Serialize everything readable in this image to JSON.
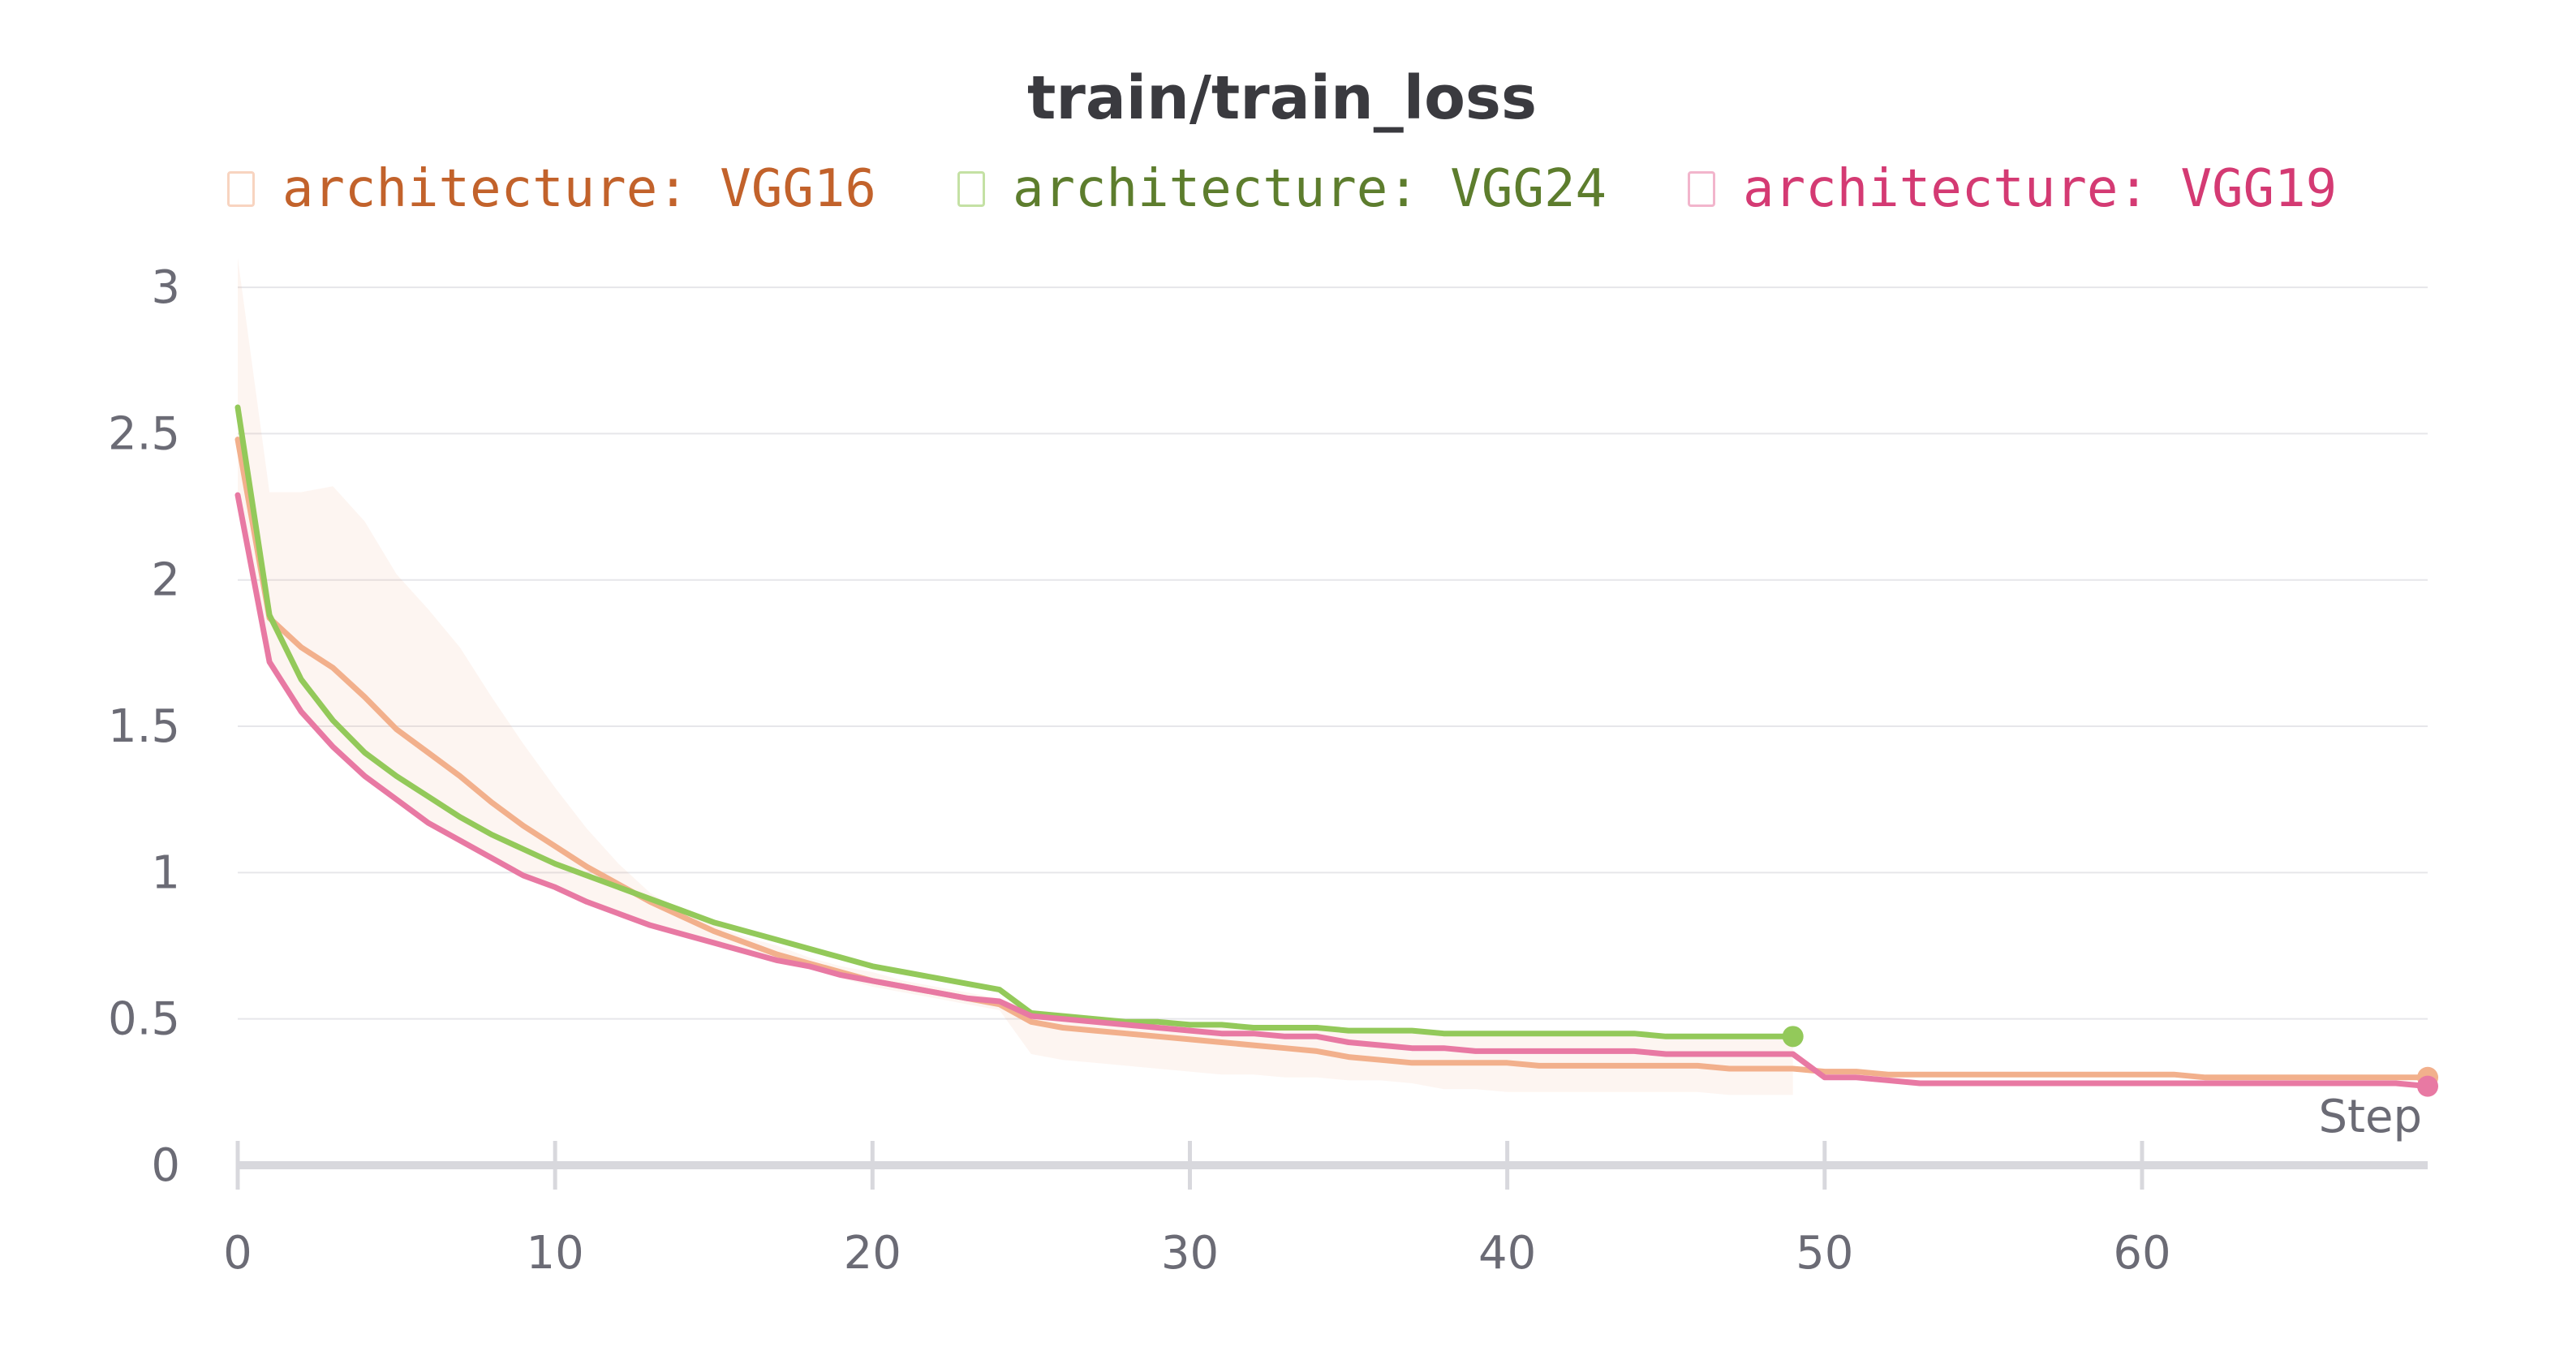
{
  "chart_data": {
    "type": "line",
    "title": "train/train_loss",
    "xlabel": "Step",
    "ylabel": "",
    "xlim": [
      0,
      69
    ],
    "ylim": [
      0,
      3.15
    ],
    "x_ticks": [
      "0",
      "10",
      "20",
      "30",
      "40",
      "50",
      "60"
    ],
    "y_ticks": [
      "0",
      "0.5",
      "1",
      "1.5",
      "2",
      "2.5",
      "3"
    ],
    "grid": true,
    "legend_position": "top-center",
    "series": [
      {
        "name": "architecture: VGG16",
        "color": "#f2b08c",
        "legend_color": "#c2622b",
        "x": [
          0,
          1,
          2,
          3,
          4,
          5,
          6,
          7,
          8,
          9,
          10,
          11,
          12,
          13,
          14,
          15,
          16,
          17,
          18,
          19,
          20,
          21,
          22,
          23,
          24,
          25,
          26,
          27,
          28,
          29,
          30,
          31,
          32,
          33,
          34,
          35,
          36,
          37,
          38,
          39,
          40,
          41,
          42,
          43,
          44,
          45,
          46,
          47,
          48,
          49,
          50,
          51,
          52,
          53,
          54,
          55,
          56,
          57,
          58,
          59,
          60,
          61,
          62,
          63,
          64,
          65,
          66,
          67,
          68,
          69
        ],
        "y": [
          2.48,
          1.87,
          1.77,
          1.7,
          1.6,
          1.49,
          1.41,
          1.33,
          1.24,
          1.16,
          1.09,
          1.02,
          0.96,
          0.9,
          0.85,
          0.8,
          0.76,
          0.72,
          0.69,
          0.66,
          0.63,
          0.61,
          0.59,
          0.57,
          0.55,
          0.49,
          0.47,
          0.46,
          0.45,
          0.44,
          0.43,
          0.42,
          0.41,
          0.4,
          0.39,
          0.37,
          0.36,
          0.35,
          0.35,
          0.35,
          0.35,
          0.34,
          0.34,
          0.34,
          0.34,
          0.34,
          0.34,
          0.33,
          0.33,
          0.33,
          0.32,
          0.32,
          0.31,
          0.31,
          0.31,
          0.31,
          0.31,
          0.31,
          0.31,
          0.31,
          0.31,
          0.31,
          0.3,
          0.3,
          0.3,
          0.3,
          0.3,
          0.3,
          0.3,
          0.3
        ]
      },
      {
        "name": "architecture: VGG24",
        "color": "#93c95a",
        "legend_color": "#5d7d2d",
        "x": [
          0,
          1,
          2,
          3,
          4,
          5,
          6,
          7,
          8,
          9,
          10,
          11,
          12,
          13,
          14,
          15,
          16,
          17,
          18,
          19,
          20,
          21,
          22,
          23,
          24,
          25,
          26,
          27,
          28,
          29,
          30,
          31,
          32,
          33,
          34,
          35,
          36,
          37,
          38,
          39,
          40,
          41,
          42,
          43,
          44,
          45,
          46,
          47,
          48,
          49
        ],
        "y": [
          2.59,
          1.88,
          1.66,
          1.52,
          1.41,
          1.33,
          1.26,
          1.19,
          1.13,
          1.08,
          1.03,
          0.99,
          0.95,
          0.91,
          0.87,
          0.83,
          0.8,
          0.77,
          0.74,
          0.71,
          0.68,
          0.66,
          0.64,
          0.62,
          0.6,
          0.52,
          0.51,
          0.5,
          0.49,
          0.49,
          0.48,
          0.48,
          0.47,
          0.47,
          0.47,
          0.46,
          0.46,
          0.46,
          0.45,
          0.45,
          0.45,
          0.45,
          0.45,
          0.45,
          0.45,
          0.44,
          0.44,
          0.44,
          0.44,
          0.44
        ]
      },
      {
        "name": "architecture: VGG19",
        "color": "#e879a3",
        "legend_color": "#d43a73",
        "x": [
          0,
          1,
          2,
          3,
          4,
          5,
          6,
          7,
          8,
          9,
          10,
          11,
          12,
          13,
          14,
          15,
          16,
          17,
          18,
          19,
          20,
          21,
          22,
          23,
          24,
          25,
          26,
          27,
          28,
          29,
          30,
          31,
          32,
          33,
          34,
          35,
          36,
          37,
          38,
          39,
          40,
          41,
          42,
          43,
          44,
          45,
          46,
          47,
          48,
          49,
          50,
          51,
          52,
          53,
          54,
          55,
          56,
          57,
          58,
          59,
          60,
          61,
          62,
          63,
          64,
          65,
          66,
          67,
          68,
          69
        ],
        "y": [
          2.29,
          1.72,
          1.55,
          1.43,
          1.33,
          1.25,
          1.17,
          1.11,
          1.05,
          0.99,
          0.95,
          0.9,
          0.86,
          0.82,
          0.79,
          0.76,
          0.73,
          0.7,
          0.68,
          0.65,
          0.63,
          0.61,
          0.59,
          0.57,
          0.56,
          0.51,
          0.5,
          0.49,
          0.48,
          0.47,
          0.46,
          0.45,
          0.45,
          0.44,
          0.44,
          0.42,
          0.41,
          0.4,
          0.4,
          0.39,
          0.39,
          0.39,
          0.39,
          0.39,
          0.39,
          0.38,
          0.38,
          0.38,
          0.38,
          0.38,
          0.3,
          0.3,
          0.29,
          0.28,
          0.28,
          0.28,
          0.28,
          0.28,
          0.28,
          0.28,
          0.28,
          0.28,
          0.28,
          0.28,
          0.28,
          0.28,
          0.28,
          0.28,
          0.28,
          0.27
        ]
      }
    ],
    "shaded_band": {
      "series": "architecture: VGG16",
      "color": "#f2b08c",
      "x": [
        0,
        1,
        2,
        3,
        4,
        5,
        6,
        7,
        8,
        9,
        10,
        11,
        12,
        13,
        14,
        15,
        16,
        17,
        18,
        19,
        20,
        21,
        22,
        23,
        24,
        25,
        26,
        27,
        28,
        29,
        30,
        31,
        32,
        33,
        34,
        35,
        36,
        37,
        38,
        39,
        40,
        41,
        42,
        43,
        44,
        45,
        46,
        47,
        48,
        49
      ],
      "upper": [
        3.1,
        2.3,
        2.3,
        2.32,
        2.2,
        2.02,
        1.9,
        1.77,
        1.6,
        1.44,
        1.29,
        1.15,
        1.03,
        0.93,
        0.87,
        0.82,
        0.78,
        0.75,
        0.71,
        0.68,
        0.66,
        0.63,
        0.61,
        0.59,
        0.57,
        0.53,
        0.52,
        0.51,
        0.5,
        0.5,
        0.49,
        0.48,
        0.48,
        0.47,
        0.47,
        0.46,
        0.46,
        0.46,
        0.45,
        0.45,
        0.45,
        0.45,
        0.45,
        0.45,
        0.45,
        0.45,
        0.44,
        0.44,
        0.44,
        0.44
      ],
      "lower": [
        2.3,
        1.72,
        1.55,
        1.43,
        1.33,
        1.25,
        1.17,
        1.11,
        1.05,
        0.99,
        0.95,
        0.9,
        0.86,
        0.82,
        0.79,
        0.76,
        0.73,
        0.7,
        0.67,
        0.64,
        0.61,
        0.59,
        0.57,
        0.55,
        0.53,
        0.38,
        0.36,
        0.35,
        0.34,
        0.33,
        0.32,
        0.31,
        0.31,
        0.3,
        0.3,
        0.29,
        0.29,
        0.28,
        0.26,
        0.26,
        0.25,
        0.25,
        0.25,
        0.25,
        0.25,
        0.25,
        0.25,
        0.24,
        0.24,
        0.24
      ]
    }
  }
}
